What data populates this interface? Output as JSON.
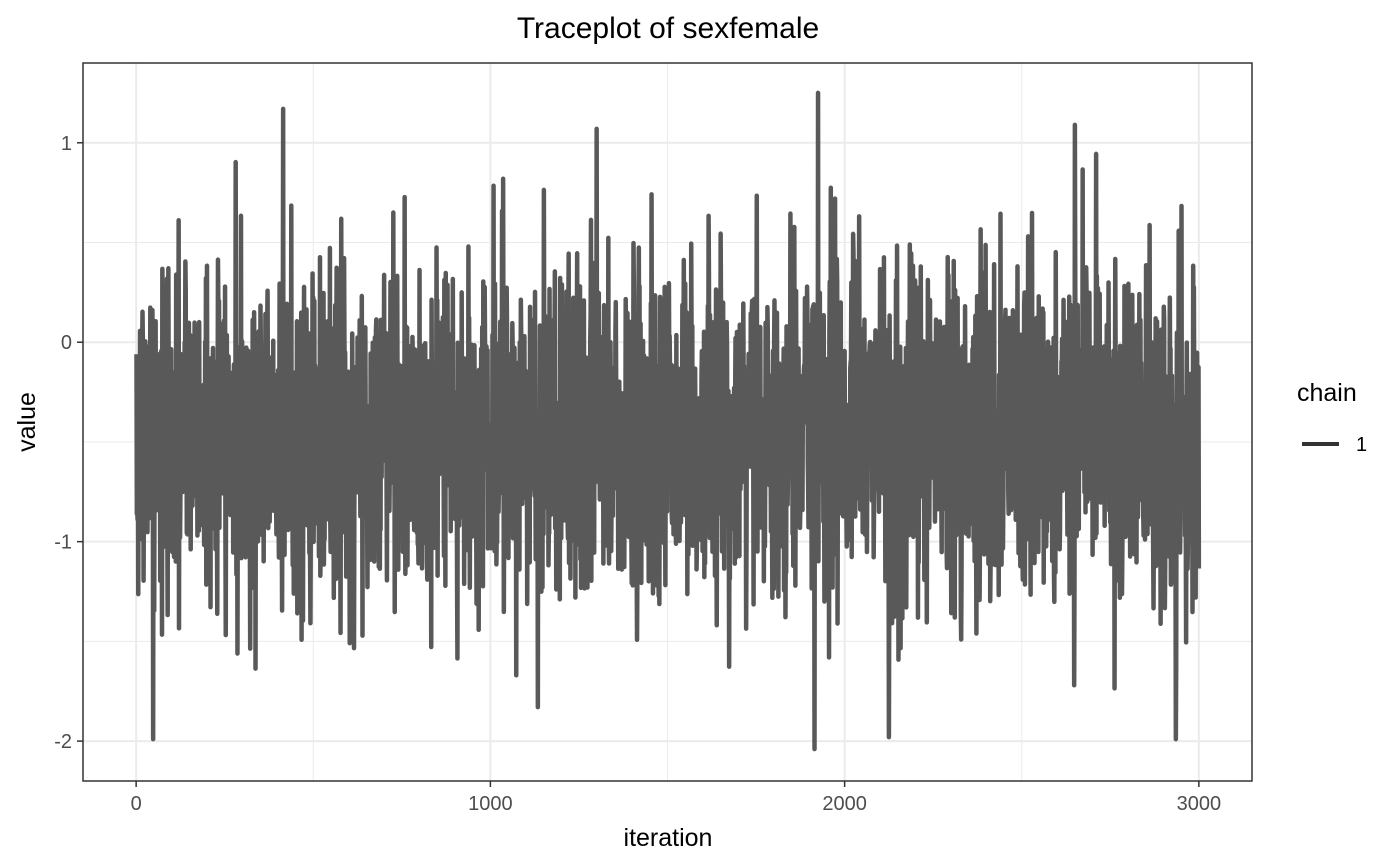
{
  "chart_data": {
    "type": "line",
    "title": "Traceplot of  sexfemale",
    "xlabel": "iteration",
    "ylabel": "value",
    "xlim": [
      -150,
      3150
    ],
    "ylim": [
      -2.2,
      1.4
    ],
    "xticks": [
      0,
      1000,
      2000,
      3000
    ],
    "xtick_labels": [
      "0",
      "1000",
      "2000",
      "3000"
    ],
    "yticks": [
      -2,
      -1,
      0,
      1
    ],
    "ytick_labels": [
      "-2",
      "-1",
      "0",
      "1"
    ],
    "grid": true,
    "legend": {
      "title": "chain",
      "position": "right",
      "entries": [
        "1"
      ]
    },
    "series": [
      {
        "name": "1",
        "color": "#595959",
        "x_start": 1,
        "x_end": 3000,
        "mean": -0.45,
        "sd": 0.42,
        "min": -2.04,
        "max": 1.25,
        "notable_points": [
          {
            "x": 415,
            "y": 1.17
          },
          {
            "x": 1925,
            "y": 1.25
          },
          {
            "x": 1915,
            "y": -2.04
          },
          {
            "x": 48,
            "y": -1.99
          },
          {
            "x": 2125,
            "y": -1.98
          },
          {
            "x": 2650,
            "y": 1.09
          },
          {
            "x": 1300,
            "y": 1.07
          }
        ]
      }
    ]
  }
}
